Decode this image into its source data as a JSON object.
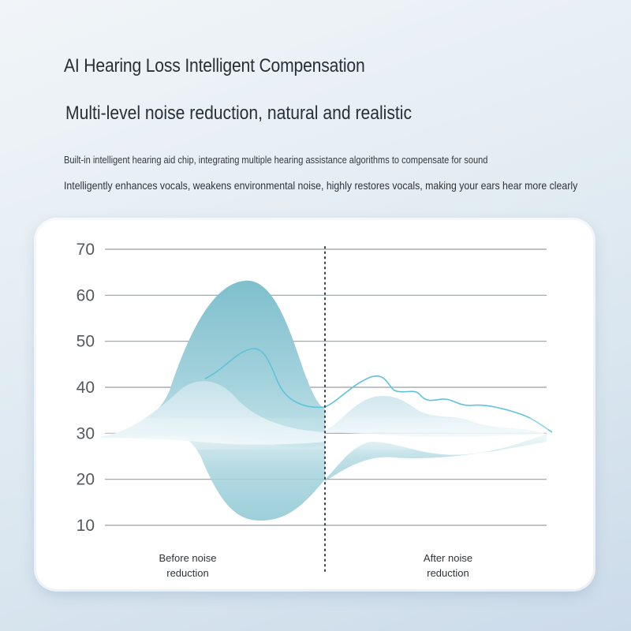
{
  "header": {
    "title": "AI Hearing Loss Intelligent Compensation",
    "subtitle": "Multi-level noise reduction, natural and realistic",
    "description_1": "Built-in intelligent hearing aid chip, integrating multiple hearing assistance algorithms to compensate for sound",
    "description_2": "Intelligently enhances vocals, weakens environmental noise, highly restores vocals, making your ears hear more clearly"
  },
  "chart_data": {
    "type": "area",
    "ylim": [
      10,
      70
    ],
    "y_ticks": [
      "70",
      "60",
      "50",
      "40",
      "30",
      "20",
      "10"
    ],
    "y_tick_values": [
      70,
      60,
      50,
      40,
      30,
      20,
      10
    ],
    "grid": true,
    "sections": [
      {
        "label_line1": "Before noise",
        "label_line2": "reduction"
      },
      {
        "label_line1": "After noise",
        "label_line2": "reduction"
      }
    ],
    "colors": {
      "dark_area": "#86c4d1",
      "light_area": "#d6ebf2",
      "line": "#5ec3d9",
      "grid": "#9a9fa3",
      "divider": "#3a3f43"
    }
  }
}
